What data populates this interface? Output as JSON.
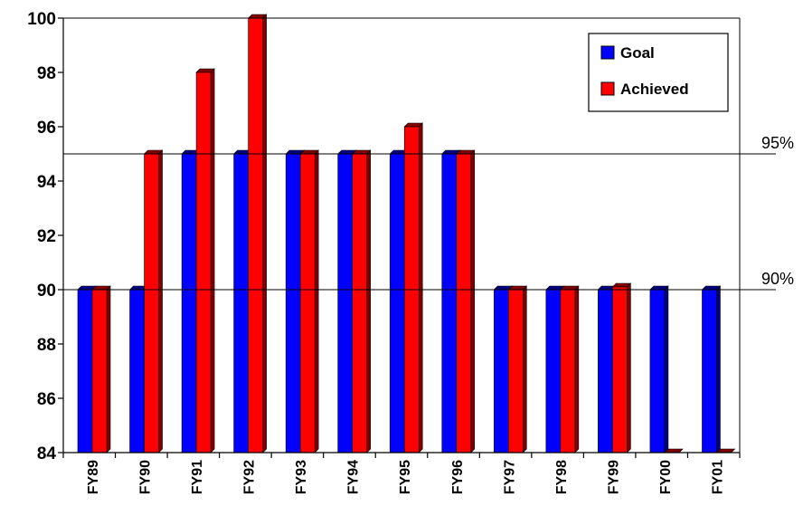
{
  "chart_data": {
    "type": "bar",
    "categories": [
      "FY89",
      "FY90",
      "FY91",
      "FY92",
      "FY93",
      "FY94",
      "FY95",
      "FY96",
      "FY97",
      "FY98",
      "FY99",
      "FY00",
      "FY01"
    ],
    "series": [
      {
        "name": "Goal",
        "values": [
          90,
          90,
          95,
          95,
          95,
          95,
          95,
          95,
          90,
          90,
          90,
          90,
          90
        ],
        "color": "#0000ff"
      },
      {
        "name": "Achieved",
        "values": [
          90,
          95,
          98,
          100,
          95,
          95,
          96,
          95,
          90,
          90,
          90.1,
          84,
          84
        ],
        "color": "#ff0000"
      }
    ],
    "ylim": [
      84,
      100
    ],
    "yticks": [
      "84",
      "86",
      "88",
      "90",
      "92",
      "94",
      "96",
      "98",
      "100"
    ],
    "reference_lines": [
      {
        "value": 95,
        "label": "95%"
      },
      {
        "value": 90,
        "label": "90%"
      }
    ],
    "legend": {
      "position": "top-right",
      "entries": [
        "Goal",
        "Achieved"
      ]
    },
    "grid": false,
    "title": "",
    "xlabel": "",
    "ylabel": ""
  }
}
